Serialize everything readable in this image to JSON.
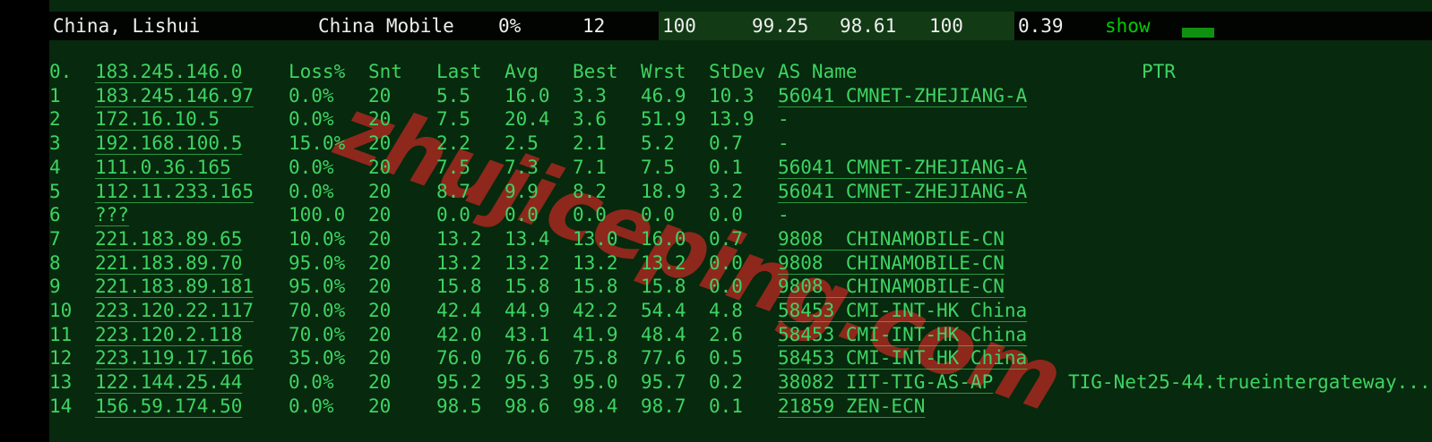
{
  "summary_bar": {
    "location": "China, Lishui",
    "carrier": "China Mobile",
    "loss_pct": "0%",
    "sent": "12",
    "metric_1": "100",
    "metric_2": "99.25",
    "metric_3": "98.61",
    "metric_4": "100",
    "stdev": "0.39",
    "show_label": "show",
    "legend_swatch_icon": "green-rect-swatch"
  },
  "table": {
    "source_row": {
      "hop": "0.",
      "host": "183.245.146.0"
    },
    "headers": [
      "Loss%",
      "Snt",
      "Last",
      "Avg",
      "Best",
      "Wrst",
      "StDev",
      "AS Name",
      "PTR"
    ],
    "rows": [
      {
        "hop": "1",
        "host": "183.245.146.97",
        "loss": "0.0%",
        "snt": "20",
        "last": "5.5",
        "avg": "16.0",
        "best": "3.3",
        "wrst": "46.9",
        "stdev": "10.3",
        "asn": "56041 CMNET-ZHEJIANG-A",
        "ptr": ""
      },
      {
        "hop": "2",
        "host": "172.16.10.5",
        "loss": "0.0%",
        "snt": "20",
        "last": "7.5",
        "avg": "20.4",
        "best": "3.6",
        "wrst": "51.9",
        "stdev": "13.9",
        "asn": "-",
        "ptr": ""
      },
      {
        "hop": "3",
        "host": "192.168.100.5",
        "loss": "15.0%",
        "snt": "20",
        "last": "2.2",
        "avg": "2.5",
        "best": "2.1",
        "wrst": "5.2",
        "stdev": "0.7",
        "asn": "-",
        "ptr": ""
      },
      {
        "hop": "4",
        "host": "111.0.36.165",
        "loss": "0.0%",
        "snt": "20",
        "last": "7.5",
        "avg": "7.3",
        "best": "7.1",
        "wrst": "7.5",
        "stdev": "0.1",
        "asn": "56041 CMNET-ZHEJIANG-A",
        "ptr": ""
      },
      {
        "hop": "5",
        "host": "112.11.233.165",
        "loss": "0.0%",
        "snt": "20",
        "last": "8.7",
        "avg": "9.9",
        "best": "8.2",
        "wrst": "18.9",
        "stdev": "3.2",
        "asn": "56041 CMNET-ZHEJIANG-A",
        "ptr": ""
      },
      {
        "hop": "6",
        "host": "???",
        "loss": "100.0",
        "snt": "20",
        "last": "0.0",
        "avg": "0.0",
        "best": "0.0",
        "wrst": "0.0",
        "stdev": "0.0",
        "asn": "-",
        "ptr": ""
      },
      {
        "hop": "7",
        "host": "221.183.89.65",
        "loss": "10.0%",
        "snt": "20",
        "last": "13.2",
        "avg": "13.4",
        "best": "13.0",
        "wrst": "16.0",
        "stdev": "0.7",
        "asn": "9808  CHINAMOBILE-CN",
        "ptr": ""
      },
      {
        "hop": "8",
        "host": "221.183.89.70",
        "loss": "95.0%",
        "snt": "20",
        "last": "13.2",
        "avg": "13.2",
        "best": "13.2",
        "wrst": "13.2",
        "stdev": "0.0",
        "asn": "9808  CHINAMOBILE-CN",
        "ptr": ""
      },
      {
        "hop": "9",
        "host": "221.183.89.181",
        "loss": "95.0%",
        "snt": "20",
        "last": "15.8",
        "avg": "15.8",
        "best": "15.8",
        "wrst": "15.8",
        "stdev": "0.0",
        "asn": "9808  CHINAMOBILE-CN",
        "ptr": ""
      },
      {
        "hop": "10",
        "host": "223.120.22.117",
        "loss": "70.0%",
        "snt": "20",
        "last": "42.4",
        "avg": "44.9",
        "best": "42.2",
        "wrst": "54.4",
        "stdev": "4.8",
        "asn": "58453 CMI-INT-HK China",
        "ptr": ""
      },
      {
        "hop": "11",
        "host": "223.120.2.118",
        "loss": "70.0%",
        "snt": "20",
        "last": "42.0",
        "avg": "43.1",
        "best": "41.9",
        "wrst": "48.4",
        "stdev": "2.6",
        "asn": "58453 CMI-INT-HK China",
        "ptr": ""
      },
      {
        "hop": "12",
        "host": "223.119.17.166",
        "loss": "35.0%",
        "snt": "20",
        "last": "76.0",
        "avg": "76.6",
        "best": "75.8",
        "wrst": "77.6",
        "stdev": "0.5",
        "asn": "58453 CMI-INT-HK China",
        "ptr": ""
      },
      {
        "hop": "13",
        "host": "122.144.25.44",
        "loss": "0.0%",
        "snt": "20",
        "last": "95.2",
        "avg": "95.3",
        "best": "95.0",
        "wrst": "95.7",
        "stdev": "0.2",
        "asn": "38082 IIT-TIG-AS-AP",
        "ptr": "TIG-Net25-44.trueintergateway..."
      },
      {
        "hop": "14",
        "host": "156.59.174.50",
        "loss": "0.0%",
        "snt": "20",
        "last": "98.5",
        "avg": "98.6",
        "best": "98.4",
        "wrst": "98.7",
        "stdev": "0.1",
        "asn": "21859 ZEN-ECN",
        "ptr": ""
      }
    ]
  },
  "watermark": {
    "text": "zhujiceping.com",
    "color": "#8e281c"
  },
  "colors": {
    "background_green": "#07290d",
    "text_green": "#3ed363",
    "white_text": "#efefef",
    "bar_green_bg": "#123a15",
    "show_link_green": "#00cc00",
    "swatch_green": "#0f9110",
    "black_band": "#020402"
  }
}
